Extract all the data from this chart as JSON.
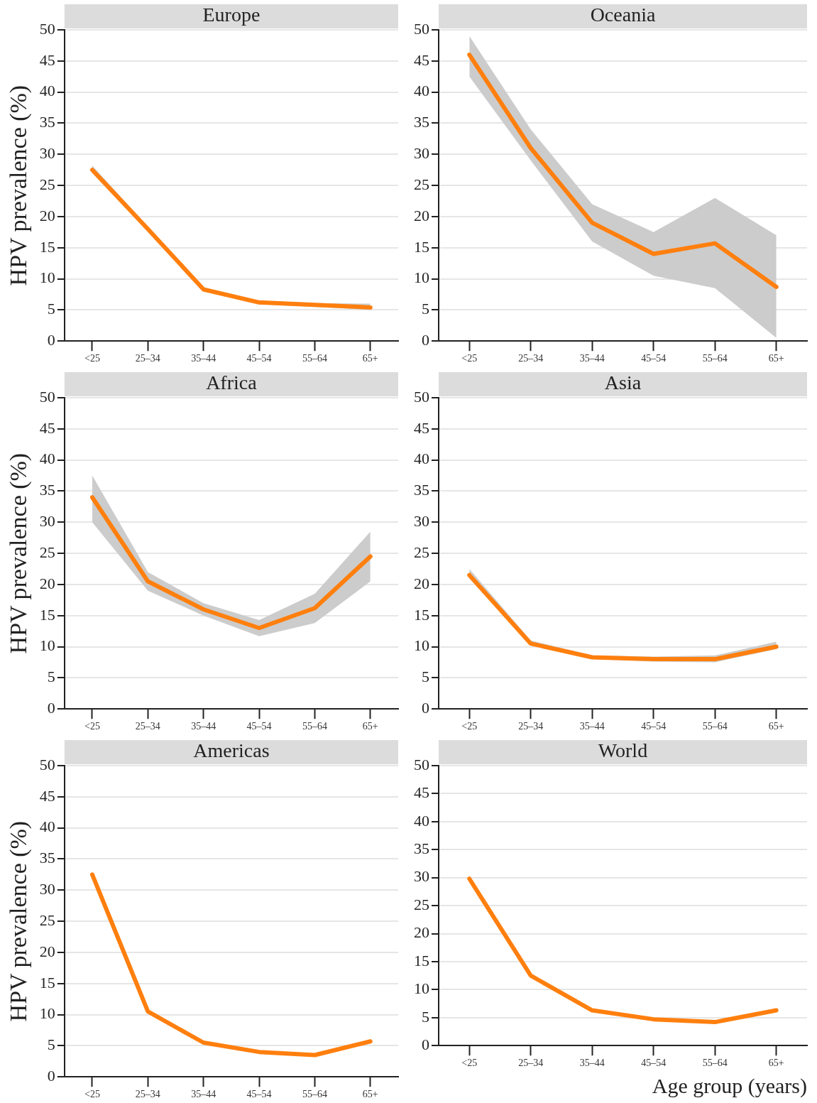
{
  "chart_data": [
    {
      "type": "line",
      "title": "Europe",
      "ylabel": "HPV prevalence (%)",
      "categories": [
        "<25",
        "25–34",
        "35–44",
        "45–54",
        "55–64",
        "65+"
      ],
      "ylim": [
        0,
        50
      ],
      "yticks": [
        0,
        5,
        10,
        15,
        20,
        25,
        30,
        35,
        40,
        45,
        50
      ],
      "grid": "y",
      "series": [
        {
          "color": "#ff7f0e",
          "values": [
            27.5,
            18,
            8.3,
            6.2,
            5.8,
            5.4
          ],
          "lower": [
            27,
            17.6,
            8,
            5.9,
            5.5,
            5
          ],
          "upper": [
            28.2,
            18.4,
            8.6,
            6.5,
            6.1,
            6
          ]
        }
      ]
    },
    {
      "type": "line",
      "title": "Oceania",
      "categories": [
        "<25",
        "25–34",
        "35–44",
        "45–54",
        "55–64",
        "65+"
      ],
      "ylim": [
        0,
        50
      ],
      "yticks": [
        0,
        5,
        10,
        15,
        20,
        25,
        30,
        35,
        40,
        45,
        50
      ],
      "grid": "y",
      "series": [
        {
          "color": "#ff7f0e",
          "values": [
            46,
            31,
            19,
            14,
            15.7,
            8.7
          ],
          "lower": [
            42.5,
            29,
            16,
            10.5,
            8.5,
            0.5
          ],
          "upper": [
            49,
            34,
            22,
            17.5,
            23,
            17
          ]
        }
      ]
    },
    {
      "type": "line",
      "title": "Africa",
      "ylabel": "HPV prevalence (%)",
      "categories": [
        "<25",
        "25–34",
        "35–44",
        "45–54",
        "55–64",
        "65+"
      ],
      "ylim": [
        0,
        50
      ],
      "yticks": [
        0,
        5,
        10,
        15,
        20,
        25,
        30,
        35,
        40,
        45,
        50
      ],
      "grid": "y",
      "series": [
        {
          "color": "#ff7f0e",
          "values": [
            34,
            20.5,
            16,
            13,
            16.2,
            24.5
          ],
          "lower": [
            30,
            19,
            15,
            11.7,
            13.8,
            20.5
          ],
          "upper": [
            37.5,
            22,
            17,
            14.3,
            18.5,
            28.5
          ]
        }
      ]
    },
    {
      "type": "line",
      "title": "Asia",
      "categories": [
        "<25",
        "25–34",
        "35–44",
        "45–54",
        "55–64",
        "65+"
      ],
      "ylim": [
        0,
        50
      ],
      "yticks": [
        0,
        5,
        10,
        15,
        20,
        25,
        30,
        35,
        40,
        45,
        50
      ],
      "grid": "y",
      "series": [
        {
          "color": "#ff7f0e",
          "values": [
            21.5,
            10.5,
            8.3,
            8,
            8,
            10
          ],
          "lower": [
            21,
            10.2,
            8,
            7.6,
            7.5,
            9.6
          ],
          "upper": [
            22.5,
            11,
            8.6,
            8.4,
            8.6,
            10.8
          ]
        }
      ]
    },
    {
      "type": "line",
      "title": "Americas",
      "ylabel": "HPV prevalence (%)",
      "categories": [
        "<25",
        "25–34",
        "35–44",
        "45–54",
        "55–64",
        "65+"
      ],
      "ylim": [
        0,
        50
      ],
      "yticks": [
        0,
        5,
        10,
        15,
        20,
        25,
        30,
        35,
        40,
        45,
        50
      ],
      "grid": "y",
      "series": [
        {
          "color": "#ff7f0e",
          "values": [
            32.5,
            10.5,
            5.5,
            4,
            3.5,
            5.7
          ]
        }
      ]
    },
    {
      "type": "line",
      "title": "World",
      "xlabel": "Age group (years)",
      "categories": [
        "<25",
        "25–34",
        "35–44",
        "45–54",
        "55–64",
        "65+"
      ],
      "ylim": [
        0,
        50
      ],
      "yticks": [
        0,
        5,
        10,
        15,
        20,
        25,
        30,
        35,
        40,
        45,
        50
      ],
      "grid": "y",
      "series": [
        {
          "color": "#ff7f0e",
          "values": [
            29.8,
            12.5,
            6.3,
            4.7,
            4.2,
            6.3
          ]
        }
      ]
    }
  ]
}
